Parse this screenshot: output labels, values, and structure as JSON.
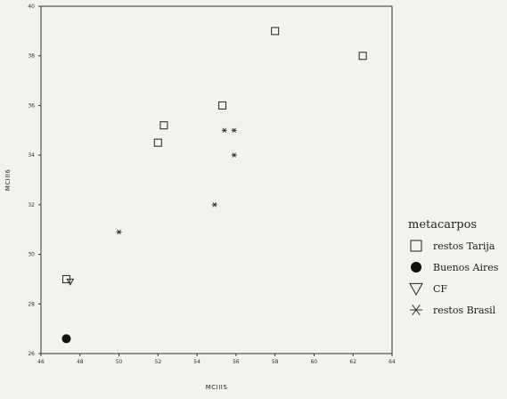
{
  "chart_data": {
    "type": "scatter",
    "title": "",
    "xlabel": "MCIIIS",
    "ylabel": "MCIII6",
    "xlim": [
      46,
      64
    ],
    "ylim": [
      26,
      40
    ],
    "x_ticks": [
      46,
      48,
      50,
      52,
      54,
      56,
      58,
      60,
      62,
      64
    ],
    "y_ticks": [
      26,
      28,
      30,
      32,
      34,
      36,
      38,
      40
    ],
    "grid": false,
    "legend": {
      "title": "metacarpos",
      "placement": "right",
      "entries": [
        {
          "label": "restos Tarija",
          "marker": "square"
        },
        {
          "label": "Buenos Aires",
          "marker": "circle"
        },
        {
          "label": "CF",
          "marker": "triangle-down"
        },
        {
          "label": "restos Brasil",
          "marker": "asterisk"
        }
      ]
    },
    "series": [
      {
        "name": "restos Tarija",
        "marker": "square",
        "points": [
          {
            "x": 47.3,
            "y": 29.0
          },
          {
            "x": 52.0,
            "y": 34.5
          },
          {
            "x": 52.3,
            "y": 35.2
          },
          {
            "x": 55.3,
            "y": 36.0
          },
          {
            "x": 58.0,
            "y": 39.0
          },
          {
            "x": 62.5,
            "y": 38.0
          }
        ]
      },
      {
        "name": "Buenos Aires",
        "marker": "circle",
        "points": [
          {
            "x": 47.3,
            "y": 26.6
          }
        ]
      },
      {
        "name": "CF",
        "marker": "triangle-down",
        "points": [
          {
            "x": 47.5,
            "y": 28.9
          }
        ]
      },
      {
        "name": "restos Brasil",
        "marker": "asterisk",
        "points": [
          {
            "x": 50.0,
            "y": 30.9
          },
          {
            "x": 54.9,
            "y": 32.0
          },
          {
            "x": 55.4,
            "y": 35.0
          },
          {
            "x": 55.9,
            "y": 35.0
          },
          {
            "x": 55.9,
            "y": 34.0
          }
        ]
      }
    ]
  }
}
